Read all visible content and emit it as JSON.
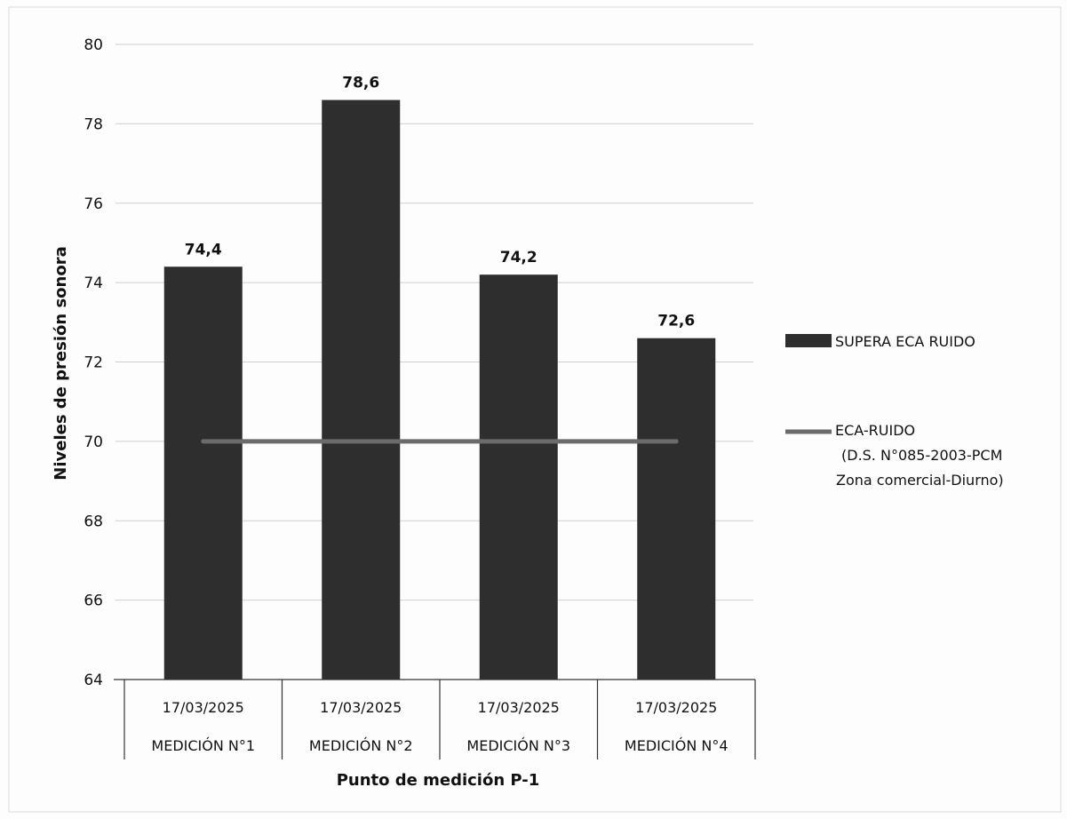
{
  "chart_data": {
    "type": "bar",
    "title": "",
    "xlabel": "Punto de medición P-1",
    "ylabel": "Niveles de presión sonora",
    "ylim": [
      64,
      80
    ],
    "yticks": [
      64,
      66,
      68,
      70,
      72,
      74,
      76,
      78,
      80
    ],
    "grid": true,
    "legend_position": "right",
    "categories": [
      {
        "date": "17/03/2025",
        "label": "MEDICIÓN N°1"
      },
      {
        "date": "17/03/2025",
        "label": "MEDICIÓN N°2"
      },
      {
        "date": "17/03/2025",
        "label": "MEDICIÓN N°3"
      },
      {
        "date": "17/03/2025",
        "label": "MEDICIÓN N°4"
      }
    ],
    "series": [
      {
        "name": "SUPERA ECA RUIDO",
        "kind": "bar",
        "color": "#2e2e2e",
        "values": [
          74.4,
          78.6,
          74.2,
          72.6
        ],
        "data_labels": [
          "74,4",
          "78,6",
          "74,2",
          "72,6"
        ]
      },
      {
        "name_lines": [
          "ECA-RUIDO",
          "(D.S. N°085-2003-PCM",
          "Zona comercial-Diurno)"
        ],
        "kind": "line",
        "color": "#6b6b6b",
        "values": [
          70,
          70,
          70,
          70
        ]
      }
    ]
  }
}
